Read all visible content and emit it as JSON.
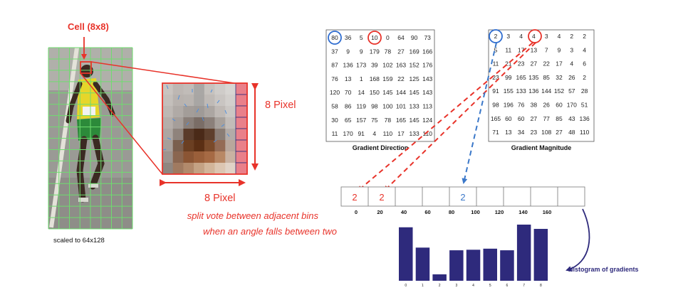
{
  "left_panel": {
    "cell_label": "Cell (8x8)",
    "scaled_caption": "scaled to 64x128",
    "pixel_label_right": "8  Pixel",
    "pixel_label_bottom": "8  Pixel",
    "note_line1": "split vote between adjacent bins",
    "note_line2": "when an angle falls between two"
  },
  "gradient_direction": {
    "title": "Gradient Direction",
    "rows": [
      [
        "80",
        "36",
        "5",
        "10",
        "0",
        "64",
        "90",
        "73"
      ],
      [
        "37",
        "9",
        "9",
        "179",
        "78",
        "27",
        "169",
        "166"
      ],
      [
        "87",
        "136",
        "173",
        "39",
        "102",
        "163",
        "152",
        "176"
      ],
      [
        "76",
        "13",
        "1",
        "168",
        "159",
        "22",
        "125",
        "143"
      ],
      [
        "120",
        "70",
        "14",
        "150",
        "145",
        "144",
        "145",
        "143"
      ],
      [
        "58",
        "86",
        "119",
        "98",
        "100",
        "101",
        "133",
        "113"
      ],
      [
        "30",
        "65",
        "157",
        "75",
        "78",
        "165",
        "145",
        "124"
      ],
      [
        "11",
        "170",
        "91",
        "4",
        "110",
        "17",
        "133",
        "110"
      ]
    ]
  },
  "gradient_magnitude": {
    "title": "Gradient Magnitude",
    "rows": [
      [
        "2",
        "3",
        "4",
        "4",
        "3",
        "4",
        "2",
        "2"
      ],
      [
        "5",
        "11",
        "17",
        "13",
        "7",
        "9",
        "3",
        "4"
      ],
      [
        "11",
        "21",
        "23",
        "27",
        "22",
        "17",
        "4",
        "6"
      ],
      [
        "23",
        "99",
        "165",
        "135",
        "85",
        "32",
        "26",
        "2"
      ],
      [
        "91",
        "155",
        "133",
        "136",
        "144",
        "152",
        "57",
        "28"
      ],
      [
        "98",
        "196",
        "76",
        "38",
        "26",
        "60",
        "170",
        "51"
      ],
      [
        "165",
        "60",
        "60",
        "27",
        "77",
        "85",
        "43",
        "136"
      ],
      [
        "71",
        "13",
        "34",
        "23",
        "108",
        "27",
        "48",
        "110"
      ]
    ]
  },
  "bins": {
    "labels": [
      "0",
      "20",
      "40",
      "60",
      "80",
      "100",
      "120",
      "140",
      "160"
    ],
    "votes": [
      "2",
      "2",
      "",
      "",
      "2",
      "",
      "",
      "",
      ""
    ]
  },
  "histogram": {
    "label": "Histogram of gradients",
    "bar_labels": [
      "0",
      "1",
      "2",
      "3",
      "4",
      "5",
      "6",
      "7",
      "8"
    ],
    "values": [
      1.0,
      0.62,
      0.12,
      0.57,
      0.58,
      0.6,
      0.57,
      1.05,
      0.97
    ]
  },
  "colors": {
    "red": "#e8332a",
    "blue": "#3b78c9",
    "grid_green": "#6fdc6f",
    "bar": "#2e2a7c",
    "circle_blue": "#2f6dd0"
  }
}
